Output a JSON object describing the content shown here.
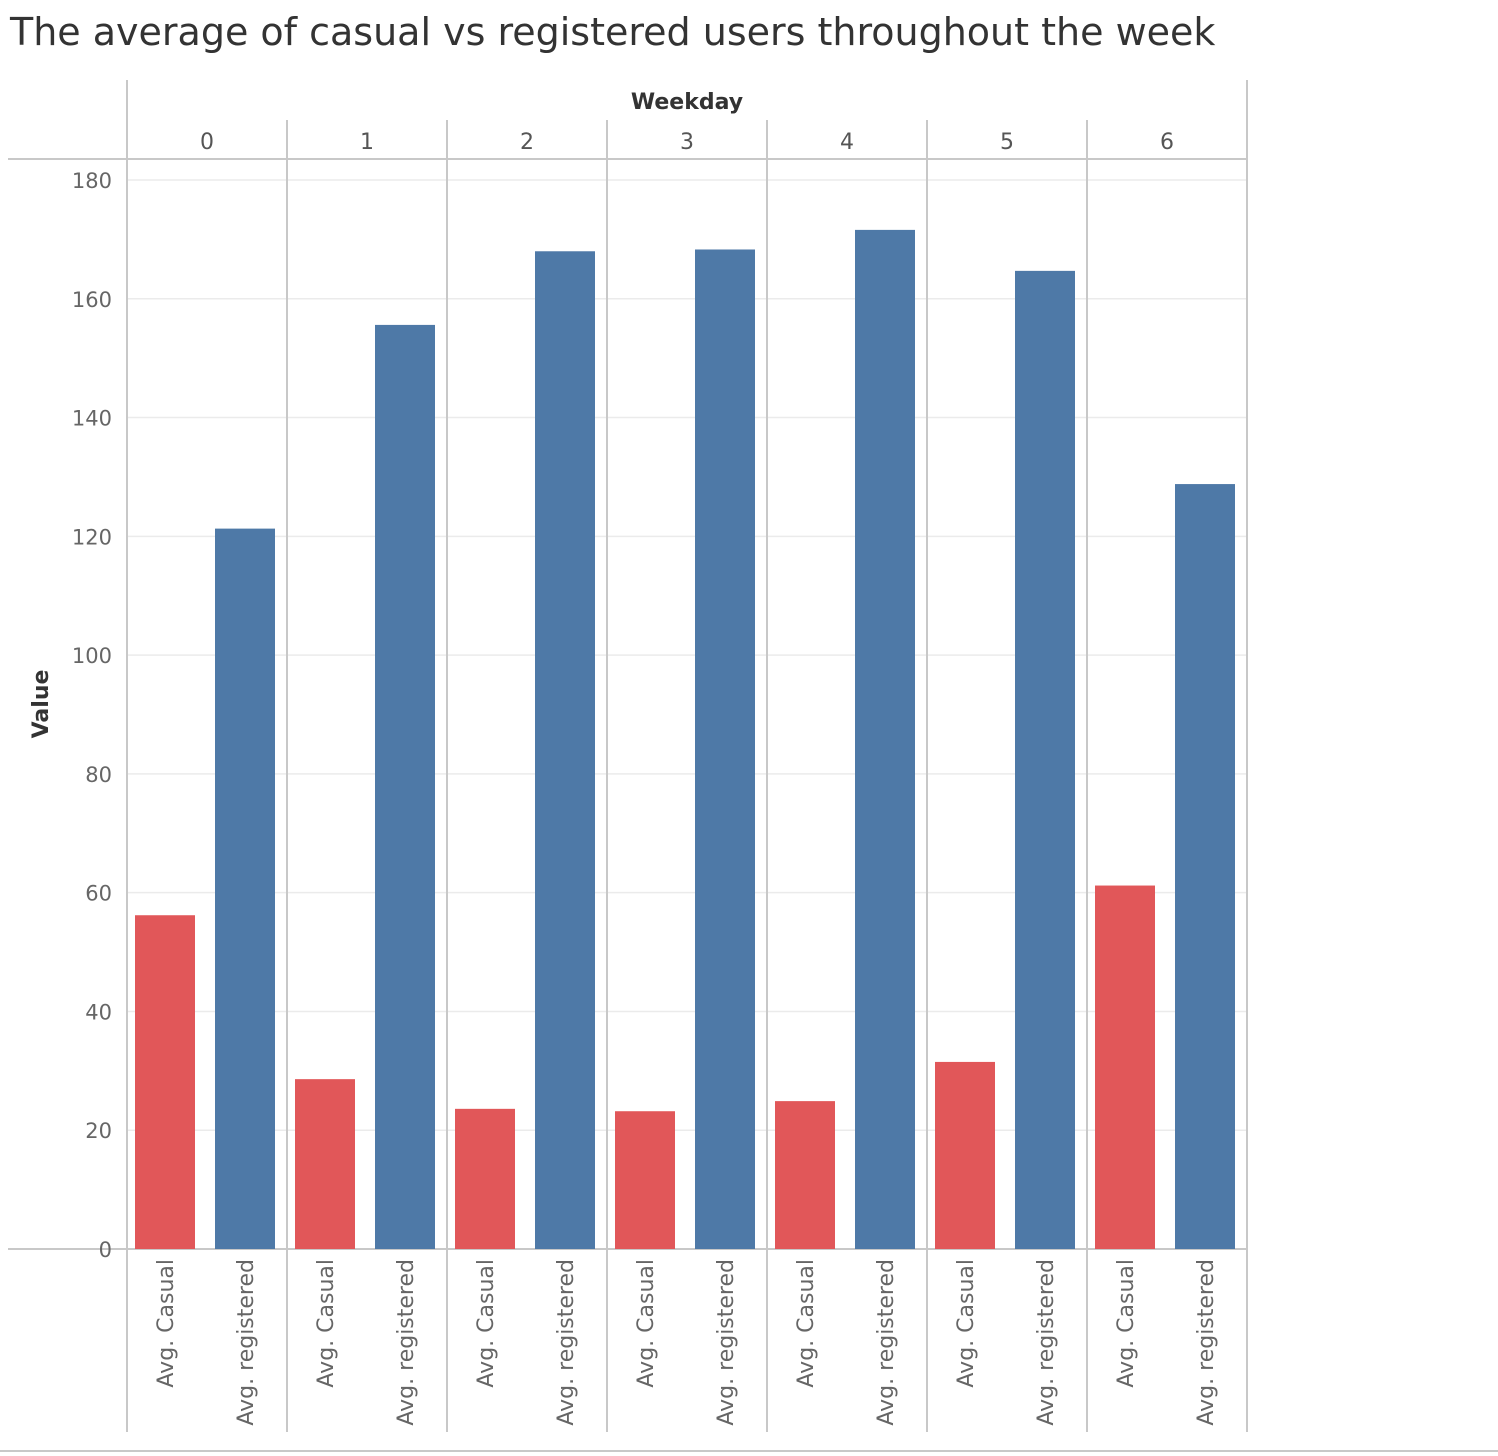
{
  "title": "The average of casual vs registered users throughout the week",
  "chart_data": {
    "type": "bar",
    "title": "The average of casual vs registered users throughout the week",
    "column_header": "Weekday",
    "ylabel": "Value",
    "ylim": [
      0,
      180
    ],
    "yticks": [
      0,
      20,
      40,
      60,
      80,
      100,
      120,
      140,
      160,
      180
    ],
    "grid": true,
    "categories": [
      "0",
      "1",
      "2",
      "3",
      "4",
      "5",
      "6"
    ],
    "series": [
      {
        "name": "Avg. Casual",
        "color": "#e15759",
        "values": [
          56.2,
          28.6,
          23.6,
          23.2,
          24.9,
          31.5,
          61.2
        ]
      },
      {
        "name": "Avg. registered",
        "color": "#4e79a7",
        "values": [
          121.3,
          155.6,
          168.0,
          168.3,
          171.6,
          164.7,
          128.8
        ]
      }
    ]
  }
}
